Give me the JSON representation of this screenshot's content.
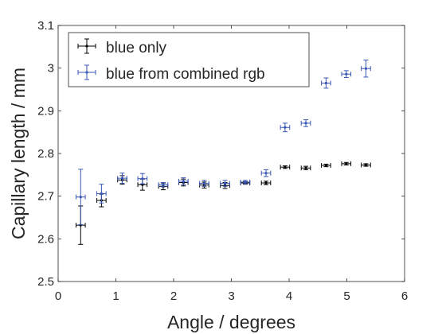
{
  "chart_data": {
    "type": "scatter",
    "xlabel": "Angle / degrees",
    "ylabel": "Capillary length / mm",
    "xlim": [
      0,
      6
    ],
    "ylim": [
      2.5,
      3.1
    ],
    "xticks": [
      "0",
      "1",
      "2",
      "3",
      "4",
      "5",
      "6"
    ],
    "yticks": [
      "2.5",
      "2.6",
      "2.7",
      "2.8",
      "2.9",
      "3",
      "3.1"
    ],
    "grid": false,
    "legend_position": "top-left",
    "error_bars": true,
    "series": [
      {
        "name": "blue only",
        "color": "#000000",
        "points": [
          {
            "x": 0.39,
            "y": 2.632,
            "xerr": 0.08,
            "yerr": 0.045
          },
          {
            "x": 0.75,
            "y": 2.69,
            "xerr": 0.08,
            "yerr": 0.015
          },
          {
            "x": 1.11,
            "y": 2.738,
            "xerr": 0.08,
            "yerr": 0.01
          },
          {
            "x": 1.46,
            "y": 2.727,
            "xerr": 0.08,
            "yerr": 0.013
          },
          {
            "x": 1.82,
            "y": 2.723,
            "xerr": 0.08,
            "yerr": 0.008
          },
          {
            "x": 2.17,
            "y": 2.732,
            "xerr": 0.08,
            "yerr": 0.008
          },
          {
            "x": 2.53,
            "y": 2.726,
            "xerr": 0.08,
            "yerr": 0.007
          },
          {
            "x": 2.89,
            "y": 2.725,
            "xerr": 0.08,
            "yerr": 0.007
          },
          {
            "x": 3.24,
            "y": 2.731,
            "xerr": 0.08,
            "yerr": 0.003
          },
          {
            "x": 3.6,
            "y": 2.731,
            "xerr": 0.08,
            "yerr": 0.004
          },
          {
            "x": 3.93,
            "y": 2.768,
            "xerr": 0.08,
            "yerr": 0.003
          },
          {
            "x": 4.29,
            "y": 2.766,
            "xerr": 0.08,
            "yerr": 0.004
          },
          {
            "x": 4.64,
            "y": 2.772,
            "xerr": 0.08,
            "yerr": 0.003
          },
          {
            "x": 4.99,
            "y": 2.776,
            "xerr": 0.08,
            "yerr": 0.003
          },
          {
            "x": 5.33,
            "y": 2.773,
            "xerr": 0.08,
            "yerr": 0.003
          }
        ]
      },
      {
        "name": "blue from combined rgb",
        "color": "#3a56b4",
        "points": [
          {
            "x": 0.39,
            "y": 2.698,
            "xerr": 0.08,
            "yerr": 0.065
          },
          {
            "x": 0.75,
            "y": 2.706,
            "xerr": 0.08,
            "yerr": 0.022
          },
          {
            "x": 1.11,
            "y": 2.742,
            "xerr": 0.08,
            "yerr": 0.012
          },
          {
            "x": 1.46,
            "y": 2.741,
            "xerr": 0.08,
            "yerr": 0.012
          },
          {
            "x": 1.82,
            "y": 2.727,
            "xerr": 0.08,
            "yerr": 0.005
          },
          {
            "x": 2.17,
            "y": 2.735,
            "xerr": 0.08,
            "yerr": 0.008
          },
          {
            "x": 2.53,
            "y": 2.73,
            "xerr": 0.08,
            "yerr": 0.007
          },
          {
            "x": 2.89,
            "y": 2.73,
            "xerr": 0.08,
            "yerr": 0.007
          },
          {
            "x": 3.24,
            "y": 2.733,
            "xerr": 0.08,
            "yerr": 0.004
          },
          {
            "x": 3.6,
            "y": 2.754,
            "xerr": 0.08,
            "yerr": 0.008
          },
          {
            "x": 3.93,
            "y": 2.861,
            "xerr": 0.08,
            "yerr": 0.01
          },
          {
            "x": 4.29,
            "y": 2.871,
            "xerr": 0.08,
            "yerr": 0.008
          },
          {
            "x": 4.64,
            "y": 2.965,
            "xerr": 0.08,
            "yerr": 0.012
          },
          {
            "x": 4.99,
            "y": 2.986,
            "xerr": 0.08,
            "yerr": 0.008
          },
          {
            "x": 5.33,
            "y": 2.999,
            "xerr": 0.08,
            "yerr": 0.02
          }
        ]
      }
    ]
  }
}
